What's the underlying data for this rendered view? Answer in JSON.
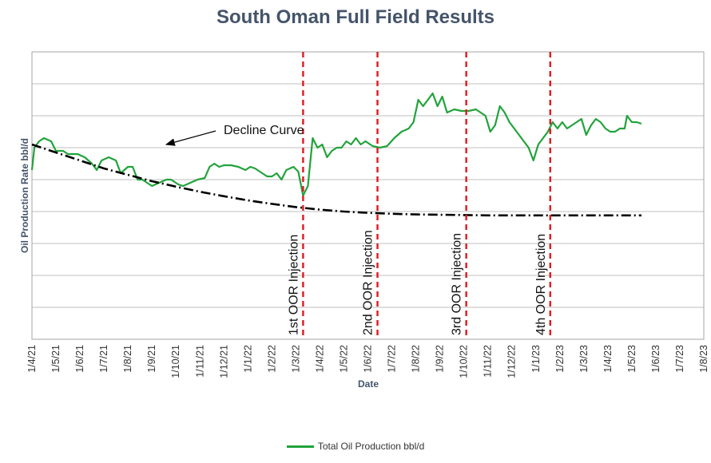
{
  "chart_data": {
    "type": "line",
    "title": "South Oman Full Field Results",
    "xlabel": "Date",
    "ylabel": "Oil Production Rate bbl/d",
    "ylim": [
      0,
      9
    ],
    "grid": true,
    "legend_position": "bottom",
    "x_tick_labels": [
      "1/4/21",
      "1/5/21",
      "1/6/21",
      "1/7/21",
      "1/8/21",
      "1/9/21",
      "1/10/21",
      "1/11/21",
      "1/12/21",
      "1/1/22",
      "1/2/22",
      "1/3/22",
      "1/4/22",
      "1/5/22",
      "1/6/22",
      "1/7/22",
      "1/8/22",
      "1/9/22",
      "1/10/22",
      "1/11/22",
      "1/12/22",
      "1/1/23",
      "1/2/23",
      "1/3/23",
      "1/4/23",
      "1/5/23",
      "1/6/23",
      "1/7/23",
      "1/8/23"
    ],
    "series": [
      {
        "name": "Total Oil Production bbl/d",
        "color": "#21a33b",
        "points": [
          [
            0,
            5.3
          ],
          [
            0.1,
            6.0
          ],
          [
            0.3,
            6.2
          ],
          [
            0.5,
            6.3
          ],
          [
            0.8,
            6.2
          ],
          [
            1.0,
            5.9
          ],
          [
            1.3,
            5.9
          ],
          [
            1.5,
            5.8
          ],
          [
            1.7,
            5.8
          ],
          [
            1.9,
            5.8
          ],
          [
            2.2,
            5.7
          ],
          [
            2.5,
            5.5
          ],
          [
            2.7,
            5.3
          ],
          [
            2.9,
            5.6
          ],
          [
            3.2,
            5.7
          ],
          [
            3.5,
            5.6
          ],
          [
            3.7,
            5.2
          ],
          [
            4.0,
            5.4
          ],
          [
            4.2,
            5.4
          ],
          [
            4.4,
            5.0
          ],
          [
            4.6,
            5.0
          ],
          [
            4.8,
            4.9
          ],
          [
            5.0,
            4.8
          ],
          [
            5.3,
            4.9
          ],
          [
            5.6,
            5.0
          ],
          [
            5.8,
            5.0
          ],
          [
            6.1,
            4.85
          ],
          [
            6.3,
            4.8
          ],
          [
            6.6,
            4.9
          ],
          [
            6.9,
            5.0
          ],
          [
            7.2,
            5.05
          ],
          [
            7.4,
            5.4
          ],
          [
            7.6,
            5.5
          ],
          [
            7.8,
            5.4
          ],
          [
            8.0,
            5.45
          ],
          [
            8.3,
            5.45
          ],
          [
            8.6,
            5.4
          ],
          [
            8.9,
            5.3
          ],
          [
            9.1,
            5.4
          ],
          [
            9.3,
            5.35
          ],
          [
            9.6,
            5.2
          ],
          [
            9.8,
            5.1
          ],
          [
            10.0,
            5.1
          ],
          [
            10.2,
            5.2
          ],
          [
            10.4,
            5.0
          ],
          [
            10.6,
            5.3
          ],
          [
            10.9,
            5.4
          ],
          [
            11.1,
            5.25
          ],
          [
            11.3,
            4.5
          ],
          [
            11.5,
            4.8
          ],
          [
            11.7,
            6.3
          ],
          [
            11.9,
            6.0
          ],
          [
            12.1,
            6.1
          ],
          [
            12.3,
            5.7
          ],
          [
            12.5,
            5.9
          ],
          [
            12.7,
            6.0
          ],
          [
            12.9,
            6.0
          ],
          [
            13.1,
            6.2
          ],
          [
            13.3,
            6.1
          ],
          [
            13.5,
            6.3
          ],
          [
            13.7,
            6.1
          ],
          [
            13.9,
            6.2
          ],
          [
            14.2,
            6.05
          ],
          [
            14.5,
            6.0
          ],
          [
            14.8,
            6.05
          ],
          [
            15.1,
            6.3
          ],
          [
            15.4,
            6.5
          ],
          [
            15.7,
            6.6
          ],
          [
            15.9,
            6.8
          ],
          [
            16.1,
            7.5
          ],
          [
            16.3,
            7.3
          ],
          [
            16.5,
            7.5
          ],
          [
            16.7,
            7.7
          ],
          [
            16.9,
            7.3
          ],
          [
            17.1,
            7.6
          ],
          [
            17.3,
            7.1
          ],
          [
            17.6,
            7.2
          ],
          [
            17.9,
            7.15
          ],
          [
            18.2,
            7.15
          ],
          [
            18.5,
            7.2
          ],
          [
            18.7,
            7.1
          ],
          [
            18.9,
            7.0
          ],
          [
            19.1,
            6.5
          ],
          [
            19.3,
            6.7
          ],
          [
            19.5,
            7.3
          ],
          [
            19.7,
            7.1
          ],
          [
            19.9,
            6.8
          ],
          [
            20.1,
            6.6
          ],
          [
            20.3,
            6.4
          ],
          [
            20.5,
            6.2
          ],
          [
            20.7,
            6.0
          ],
          [
            20.9,
            5.6
          ],
          [
            21.1,
            6.1
          ],
          [
            21.3,
            6.3
          ],
          [
            21.5,
            6.5
          ],
          [
            21.7,
            6.8
          ],
          [
            21.9,
            6.6
          ],
          [
            22.1,
            6.8
          ],
          [
            22.3,
            6.6
          ],
          [
            22.5,
            6.7
          ],
          [
            22.7,
            6.8
          ],
          [
            22.9,
            6.9
          ],
          [
            23.1,
            6.4
          ],
          [
            23.3,
            6.7
          ],
          [
            23.5,
            6.9
          ],
          [
            23.7,
            6.8
          ],
          [
            23.9,
            6.6
          ],
          [
            24.1,
            6.5
          ],
          [
            24.3,
            6.5
          ],
          [
            24.5,
            6.6
          ],
          [
            24.7,
            6.6
          ],
          [
            24.8,
            7.0
          ],
          [
            25.0,
            6.8
          ],
          [
            25.2,
            6.8
          ],
          [
            25.4,
            6.75
          ]
        ]
      },
      {
        "name": "Decline Curve",
        "color": "#000000",
        "points": [
          [
            0,
            6.1
          ],
          [
            1,
            5.85
          ],
          [
            2,
            5.6
          ],
          [
            3,
            5.35
          ],
          [
            4,
            5.15
          ],
          [
            5,
            4.95
          ],
          [
            6,
            4.78
          ],
          [
            7,
            4.62
          ],
          [
            8,
            4.48
          ],
          [
            9,
            4.35
          ],
          [
            10,
            4.24
          ],
          [
            11,
            4.14
          ],
          [
            12,
            4.06
          ],
          [
            13,
            4.0
          ],
          [
            14,
            3.96
          ],
          [
            15,
            3.93
          ],
          [
            16,
            3.91
          ],
          [
            17,
            3.9
          ],
          [
            18,
            3.89
          ],
          [
            19,
            3.88
          ],
          [
            20,
            3.88
          ],
          [
            21,
            3.88
          ],
          [
            22,
            3.88
          ],
          [
            23,
            3.88
          ],
          [
            24,
            3.88
          ],
          [
            25,
            3.88
          ],
          [
            25.4,
            3.88
          ]
        ]
      }
    ],
    "injections": [
      {
        "label": "1st OOR Injection",
        "x": 11.3
      },
      {
        "label": "2nd OOR Injection",
        "x": 14.4
      },
      {
        "label": "3rd OOR Injection",
        "x": 18.1
      },
      {
        "label": "4th OOR Injection",
        "x": 21.6
      }
    ],
    "annotation": {
      "text": "Decline Curve"
    }
  }
}
